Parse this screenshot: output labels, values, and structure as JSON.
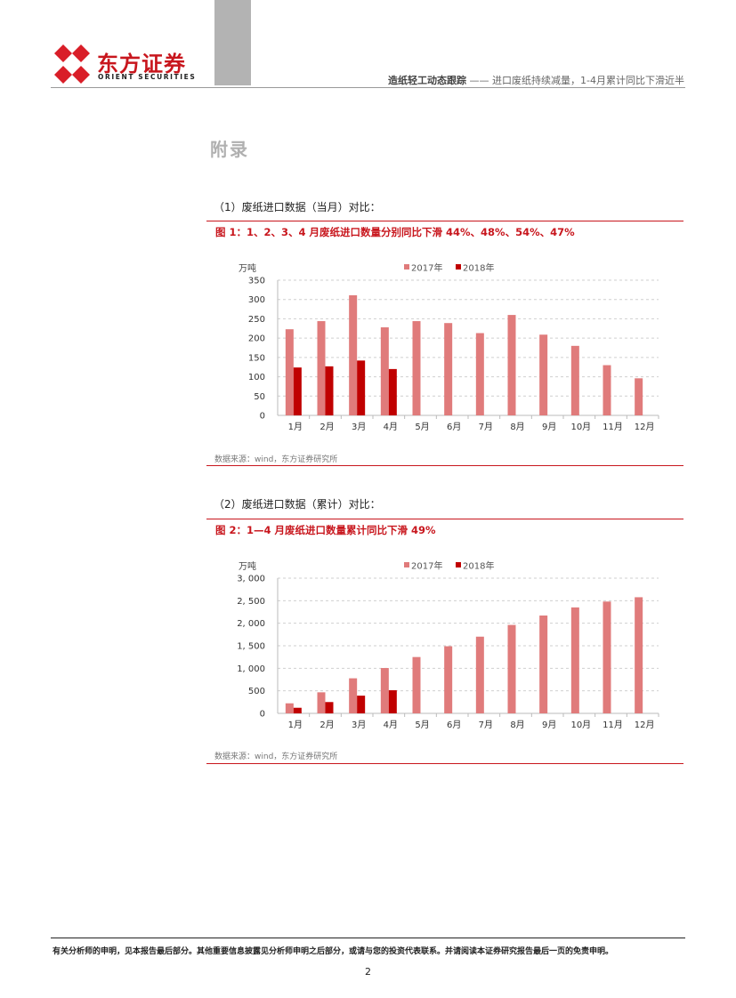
{
  "header": {
    "brand_cn": "东方证券",
    "brand_en": "ORIENT SECURITIES",
    "report_series": "造纸轻工动态跟踪",
    "report_subtitle": "—— 进口废纸持续减量，1-4月累计同比下滑近半"
  },
  "appendix_title": "附录",
  "sections": [
    {
      "heading": "（1）废纸进口数据（当月）对比：",
      "figure_title": "图 1：1、2、3、4 月废纸进口数量分别同比下滑 44%、48%、54%、47%",
      "source": "数据来源：wind，东方证券研究所"
    },
    {
      "heading": "（2）废纸进口数据（累计）对比：",
      "figure_title": "图 2：1—4 月废纸进口数量累计同比下滑 49%",
      "source": "数据来源：wind，东方证券研究所"
    }
  ],
  "chart_data": [
    {
      "type": "bar",
      "unit": "万吨",
      "categories": [
        "1月",
        "2月",
        "3月",
        "4月",
        "5月",
        "6月",
        "7月",
        "8月",
        "9月",
        "10月",
        "11月",
        "12月"
      ],
      "series": [
        {
          "name": "2017年",
          "color": "#e07b7b",
          "values": [
            223,
            244,
            311,
            228,
            244,
            239,
            213,
            260,
            209,
            180,
            130,
            96
          ]
        },
        {
          "name": "2018年",
          "color": "#c00000",
          "values": [
            124,
            127,
            142,
            120,
            null,
            null,
            null,
            null,
            null,
            null,
            null,
            null
          ]
        }
      ],
      "ylim": [
        0,
        350
      ],
      "yticks": [
        0,
        50,
        100,
        150,
        200,
        250,
        300,
        350
      ],
      "ytick_labels": [
        "0",
        "50",
        "100",
        "150",
        "200",
        "250",
        "300",
        "350"
      ],
      "grid": true,
      "legend": "top-center"
    },
    {
      "type": "bar",
      "unit": "万吨",
      "categories": [
        "1月",
        "2月",
        "3月",
        "4月",
        "5月",
        "6月",
        "7月",
        "8月",
        "9月",
        "10月",
        "11月",
        "12月"
      ],
      "series": [
        {
          "name": "2017年",
          "color": "#e07b7b",
          "values": [
            223,
            467,
            778,
            1006,
            1250,
            1489,
            1702,
            1962,
            2171,
            2351,
            2481,
            2577
          ]
        },
        {
          "name": "2018年",
          "color": "#c00000",
          "values": [
            124,
            251,
            393,
            513,
            null,
            null,
            null,
            null,
            null,
            null,
            null,
            null
          ]
        }
      ],
      "ylim": [
        0,
        3000
      ],
      "yticks": [
        0,
        500,
        1000,
        1500,
        2000,
        2500,
        3000
      ],
      "ytick_labels": [
        "0",
        "500",
        "1, 000",
        "1, 500",
        "2, 000",
        "2, 500",
        "3, 000"
      ],
      "grid": true,
      "legend": "top-center"
    }
  ],
  "footer": {
    "disclaimer": "有关分析师的申明，见本报告最后部分。其他重要信息披露见分析师申明之后部分，或请与您的投资代表联系。并请阅读本证券研究报告最后一页的免责申明。",
    "page_number": "2"
  }
}
